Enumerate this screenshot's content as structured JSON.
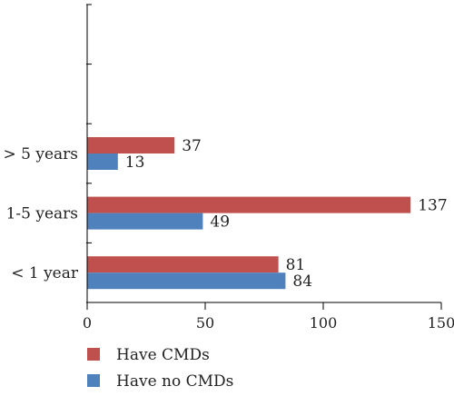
{
  "chart_data": {
    "type": "bar",
    "orientation": "horizontal",
    "categories": [
      "< 1 year",
      "1-5 years",
      "> 5 years"
    ],
    "series": [
      {
        "name": "Have CMDs",
        "color": "#c0504d",
        "values": [
          81,
          137,
          37
        ]
      },
      {
        "name": "Have no CMDs",
        "color": "#4f81bd",
        "values": [
          84,
          49,
          13
        ]
      }
    ],
    "xlim": [
      0,
      150
    ],
    "xticks": [
      0,
      50,
      100,
      150
    ],
    "title": "",
    "xlabel": "",
    "ylabel": "",
    "grid": false,
    "legend": "bottom-left"
  }
}
